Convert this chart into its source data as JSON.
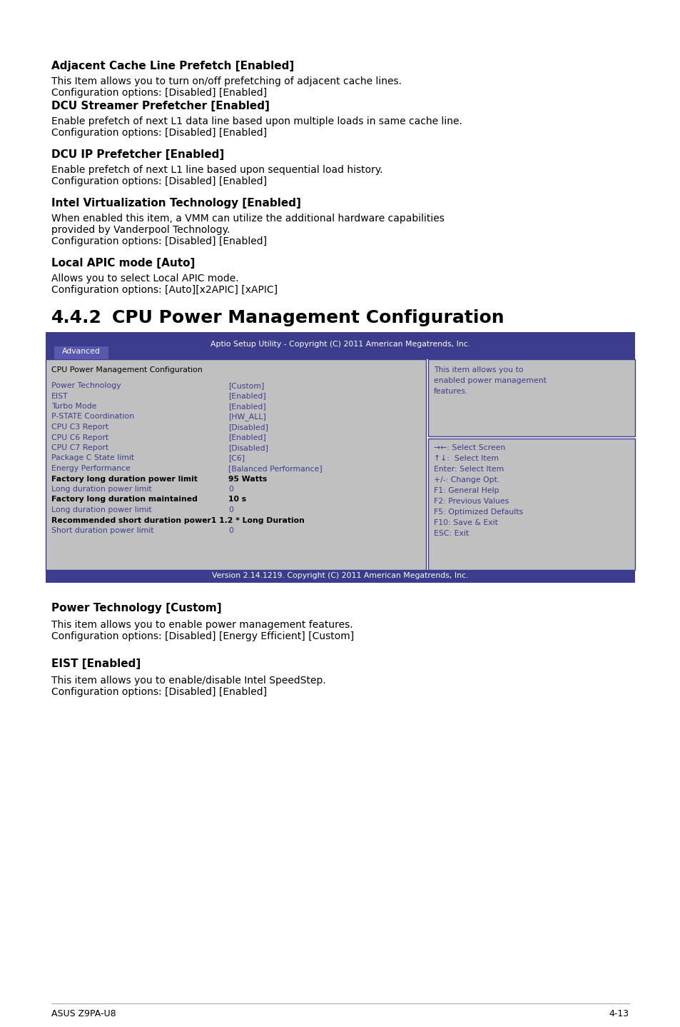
{
  "bg_color": "#ffffff",
  "lm": 72,
  "rm": 882,
  "sections_top": [
    {
      "heading": "Adjacent Cache Line Prefetch [Enabled]",
      "body": [
        "This Item allows you to turn on/off prefetching of adjacent cache lines.",
        "Configuration options: [Disabled] [Enabled]"
      ]
    },
    {
      "heading": "DCU Streamer Prefetcher [Enabled]",
      "body": [
        "Enable prefetch of next L1 data line based upon multiple loads in same cache line.",
        "Configuration options: [Disabled] [Enabled]"
      ]
    },
    {
      "heading": "DCU IP Prefetcher [Enabled]",
      "body": [
        "Enable prefetch of next L1 line based upon sequential load history.",
        "Configuration options: [Disabled] [Enabled]"
      ]
    },
    {
      "heading": "Intel Virtualization Technology [Enabled]",
      "body": [
        "When enabled this item, a VMM can utilize the additional hardware capabilities",
        "provided by Vanderpool Technology.",
        "Configuration options: [Disabled] [Enabled]"
      ]
    },
    {
      "heading": "Local APIC mode [Auto]",
      "body": [
        "Allows you to select Local APIC mode.",
        "Configuration options: [Auto][x2APIC] [xAPIC]"
      ]
    }
  ],
  "section_442_heading_num": "4.4.2",
  "section_442_heading_text": "CPU Power Management Configuration",
  "bios_header_text": "Aptio Setup Utility - Copyright (C) 2011 American Megatrends, Inc.",
  "bios_tab": "Advanced",
  "bios_header_bg": "#3c3c8c",
  "bios_tab_bg": "#5858b0",
  "bios_body_bg": "#c0c0c0",
  "bios_border_color": "#3c3c8c",
  "bios_text_color": "#3c3c8c",
  "bios_bold_color": "#000000",
  "bios_header_text_color": "#ffffff",
  "bios_left_title": "CPU Power Management Configuration",
  "bios_right_help": [
    "This item allows you to",
    "enabled power management",
    "features."
  ],
  "bios_menu_items": [
    {
      "label": "Power Technology",
      "value": "[Custom]",
      "bold": false,
      "blue": true
    },
    {
      "label": "EIST",
      "value": "[Enabled]",
      "bold": false,
      "blue": true
    },
    {
      "label": "Turbo Mode",
      "value": "[Enabled]",
      "bold": false,
      "blue": true
    },
    {
      "label": "P-STATE Coordination",
      "value": "[HW_ALL]",
      "bold": false,
      "blue": true
    },
    {
      "label": "CPU C3 Report",
      "value": "[Disabled]",
      "bold": false,
      "blue": true
    },
    {
      "label": "CPU C6 Report",
      "value": "[Enabled]",
      "bold": false,
      "blue": true
    },
    {
      "label": "CPU C7 Report",
      "value": "[Disabled]",
      "bold": false,
      "blue": true
    },
    {
      "label": "Package C State limit",
      "value": "[C6]",
      "bold": false,
      "blue": true
    },
    {
      "label": "Energy Performance",
      "value": "[Balanced Performance]",
      "bold": false,
      "blue": true
    },
    {
      "label": "Factory long duration power limit",
      "value": "95 Watts",
      "bold": true,
      "blue": false
    },
    {
      "label": "Long duration power limit",
      "value": "0",
      "bold": false,
      "blue": true
    },
    {
      "label": "Factory long duration maintained",
      "value": "10 s",
      "bold": true,
      "blue": false
    },
    {
      "label": "Long duration power limit",
      "value": "0",
      "bold": false,
      "blue": true
    },
    {
      "label": "Recommended short duration power1 1.2 * Long Duration",
      "value": "",
      "bold": true,
      "blue": false
    },
    {
      "label": "Short duration power limit",
      "value": "0",
      "bold": false,
      "blue": true
    }
  ],
  "bios_nav_items": [
    "→←: Select Screen",
    "↑↓:  Select Item",
    "Enter: Select Item",
    "+/-: Change Opt.",
    "F1: General Help",
    "F2: Previous Values",
    "F5: Optimized Defaults",
    "F10: Save & Exit",
    "ESC: Exit"
  ],
  "bios_footer_text": "Version 2.14.1219. Copyright (C) 2011 American Megatrends, Inc.",
  "sections_bottom": [
    {
      "heading": "Power Technology [Custom]",
      "body": [
        "This item allows you to enable power management features.",
        "Configuration options: [Disabled] [Energy Efficient] [Custom]"
      ]
    },
    {
      "heading": "EIST [Enabled]",
      "body": [
        "This item allows you to enable/disable Intel SpeedStep.",
        "Configuration options: [Disabled] [Enabled]"
      ]
    }
  ],
  "footer_left": "ASUS Z9PA-U8",
  "footer_right": "4-13",
  "heading_fontsize": 11,
  "body_fontsize": 10,
  "section442_num_fontsize": 18,
  "section442_text_fontsize": 18,
  "mono_fontsize": 7.8,
  "footer_fontsize": 9
}
